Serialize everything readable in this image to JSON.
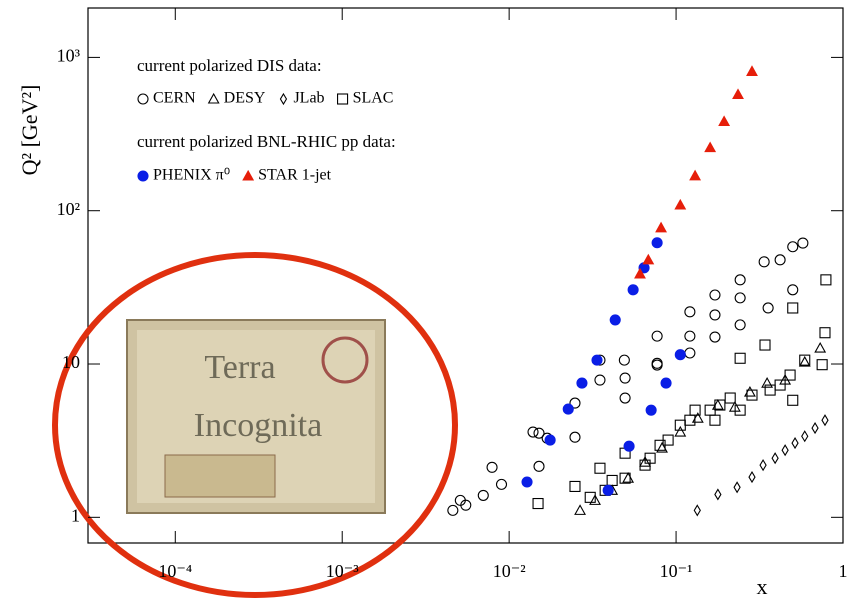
{
  "chart_data": {
    "type": "scatter",
    "x_label": "x",
    "y_label": "Q² [GeV²]",
    "log_x": true,
    "log_y": true,
    "xlim": [
      3e-05,
      1
    ],
    "ylim": [
      0.68,
      2100
    ],
    "xticks": [
      {
        "value": 0.0001,
        "label": "10⁻⁴"
      },
      {
        "value": 0.001,
        "label": "10⁻³"
      },
      {
        "value": 0.01,
        "label": "10⁻²"
      },
      {
        "value": 0.1,
        "label": "10⁻¹"
      },
      1
    ],
    "yticks": [
      1,
      10,
      {
        "value": 100,
        "label": "10²"
      },
      {
        "value": 1000,
        "label": "10³"
      }
    ],
    "legend_titles": [
      "current polarized DIS data:",
      "current polarized BNL-RHIC pp data:"
    ],
    "annotation_lines": [
      "Terra",
      "Incognita"
    ],
    "series": [
      {
        "name": "CERN",
        "marker": "circle",
        "filled": false,
        "color": "#000000",
        "x": [
          0.0046,
          0.0051,
          0.0055,
          0.007,
          0.0079,
          0.009,
          0.0139,
          0.0151,
          0.0151,
          0.0169,
          0.0248,
          0.0248,
          0.035,
          0.035,
          0.049,
          0.0495,
          0.0495,
          0.077,
          0.077,
          0.077,
          0.121,
          0.121,
          0.121,
          0.171,
          0.171,
          0.171,
          0.242,
          0.242,
          0.242,
          0.337,
          0.356,
          0.42,
          0.5,
          0.575,
          0.5
        ],
        "values": [
          1.11,
          1.29,
          1.2,
          1.39,
          2.12,
          1.64,
          3.6,
          3.54,
          2.15,
          3.28,
          3.33,
          5.56,
          7.86,
          10.6,
          10.6,
          8.1,
          6.0,
          15.2,
          9.85,
          10.1,
          21.9,
          15.2,
          11.8,
          28.2,
          20.9,
          15.0,
          35.4,
          27.0,
          18.0,
          46.4,
          23.2,
          47.8,
          58.2,
          61.5,
          30.5
        ]
      },
      {
        "name": "DESY",
        "marker": "triangle",
        "filled": false,
        "color": "#000000",
        "x": [
          0.0266,
          0.0327,
          0.0414,
          0.0516,
          0.0652,
          0.0824,
          0.106,
          0.135,
          0.178,
          0.225,
          0.277,
          0.351,
          0.45,
          0.59,
          0.73
        ],
        "values": [
          1.11,
          1.29,
          1.5,
          1.8,
          2.29,
          2.83,
          3.6,
          4.43,
          5.39,
          5.23,
          6.56,
          7.5,
          7.86,
          10.3,
          12.7
        ]
      },
      {
        "name": "JLab",
        "marker": "diamond",
        "filled": false,
        "color": "#000000",
        "x": [
          0.134,
          0.178,
          0.232,
          0.285,
          0.332,
          0.392,
          0.45,
          0.516,
          0.59,
          0.68,
          0.78
        ],
        "values": [
          1.11,
          1.41,
          1.57,
          1.83,
          2.19,
          2.43,
          2.74,
          3.05,
          3.38,
          3.82,
          4.3
        ]
      },
      {
        "name": "SLAC",
        "marker": "square",
        "filled": false,
        "color": "#000000",
        "x": [
          0.0149,
          0.0248,
          0.0306,
          0.035,
          0.0376,
          0.0414,
          0.0495,
          0.0495,
          0.0652,
          0.0699,
          0.0802,
          0.0896,
          0.106,
          0.121,
          0.13,
          0.16,
          0.171,
          0.183,
          0.211,
          0.242,
          0.242,
          0.285,
          0.341,
          0.366,
          0.42,
          0.482,
          0.5,
          0.5,
          0.59,
          0.75,
          0.78,
          0.79
        ],
        "values": [
          1.23,
          1.59,
          1.35,
          2.09,
          1.5,
          1.74,
          2.62,
          1.8,
          2.19,
          2.43,
          2.95,
          3.19,
          3.99,
          4.3,
          5.0,
          5.0,
          4.3,
          5.4,
          6.0,
          10.9,
          5.0,
          6.27,
          13.3,
          6.76,
          7.29,
          8.47,
          5.8,
          23.2,
          10.6,
          9.9,
          16.0,
          35.4
        ]
      },
      {
        "name": "PHENIX π⁰",
        "marker": "circle",
        "filled": true,
        "color": "#0a1ee6",
        "x": [
          0.0128,
          0.0176,
          0.0226,
          0.0273,
          0.0336,
          0.0432,
          0.0553,
          0.0643,
          0.077,
          0.0392,
          0.0523,
          0.0709,
          0.0871,
          0.106
        ],
        "values": [
          1.7,
          3.19,
          5.08,
          7.51,
          10.6,
          19.4,
          30.5,
          42.4,
          61.8,
          1.5,
          2.91,
          5.0,
          7.51,
          11.5
        ]
      },
      {
        "name": "STAR 1-jet",
        "marker": "triangle",
        "filled": true,
        "color": "#e61e0a",
        "x": [
          0.0608,
          0.0682,
          0.0813,
          0.106,
          0.13,
          0.16,
          0.194,
          0.235,
          0.285
        ],
        "values": [
          38.7,
          47.8,
          77.4,
          109,
          169,
          258,
          382,
          573,
          810
        ]
      }
    ]
  }
}
